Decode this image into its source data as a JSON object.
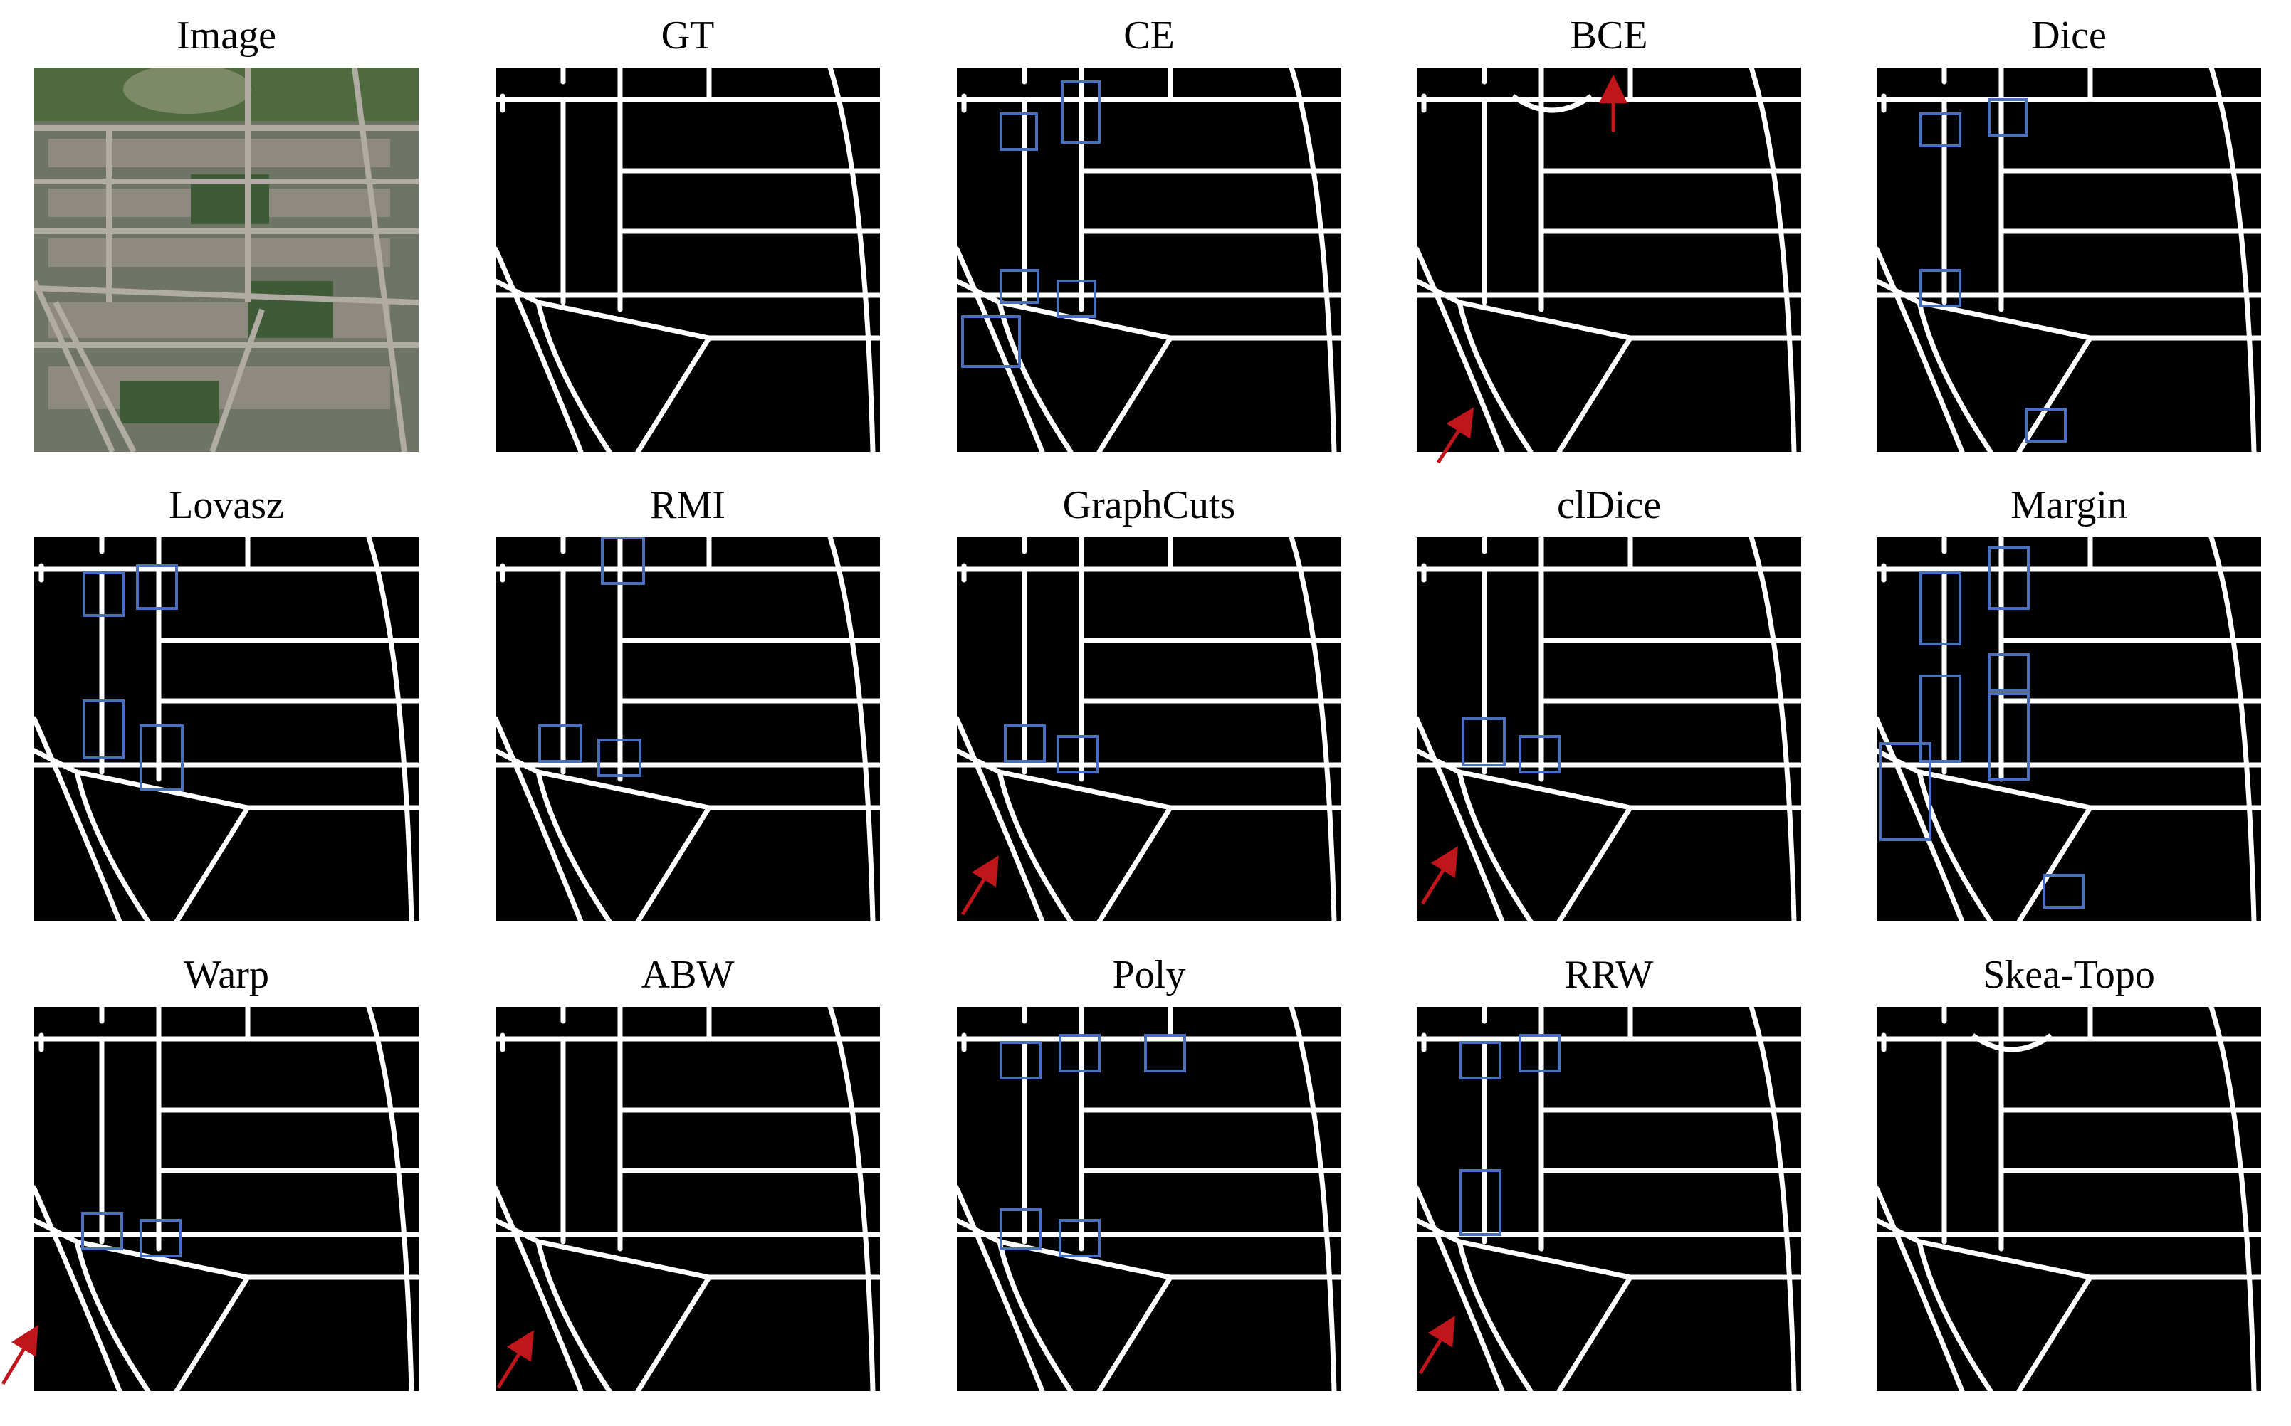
{
  "panels": [
    {
      "title": "Image",
      "kind": "image"
    },
    {
      "title": "GT",
      "kind": "mask"
    },
    {
      "title": "CE",
      "kind": "mask"
    },
    {
      "title": "BCE",
      "kind": "mask"
    },
    {
      "title": "Dice",
      "kind": "mask"
    },
    {
      "title": "Lovasz",
      "kind": "mask"
    },
    {
      "title": "RMI",
      "kind": "mask"
    },
    {
      "title": "GraphCuts",
      "kind": "mask"
    },
    {
      "title": "clDice",
      "kind": "mask"
    },
    {
      "title": "Margin",
      "kind": "mask"
    },
    {
      "title": "Warp",
      "kind": "mask"
    },
    {
      "title": "ABW",
      "kind": "mask"
    },
    {
      "title": "Poly",
      "kind": "mask"
    },
    {
      "title": "RRW",
      "kind": "mask"
    },
    {
      "title": "Skea-Topo",
      "kind": "mask"
    }
  ],
  "colors": {
    "background": "#ffffff",
    "mask_bg": "#000000",
    "road": "#ffffff",
    "box": "#4a6fbf",
    "arrow": "#c0151b"
  }
}
